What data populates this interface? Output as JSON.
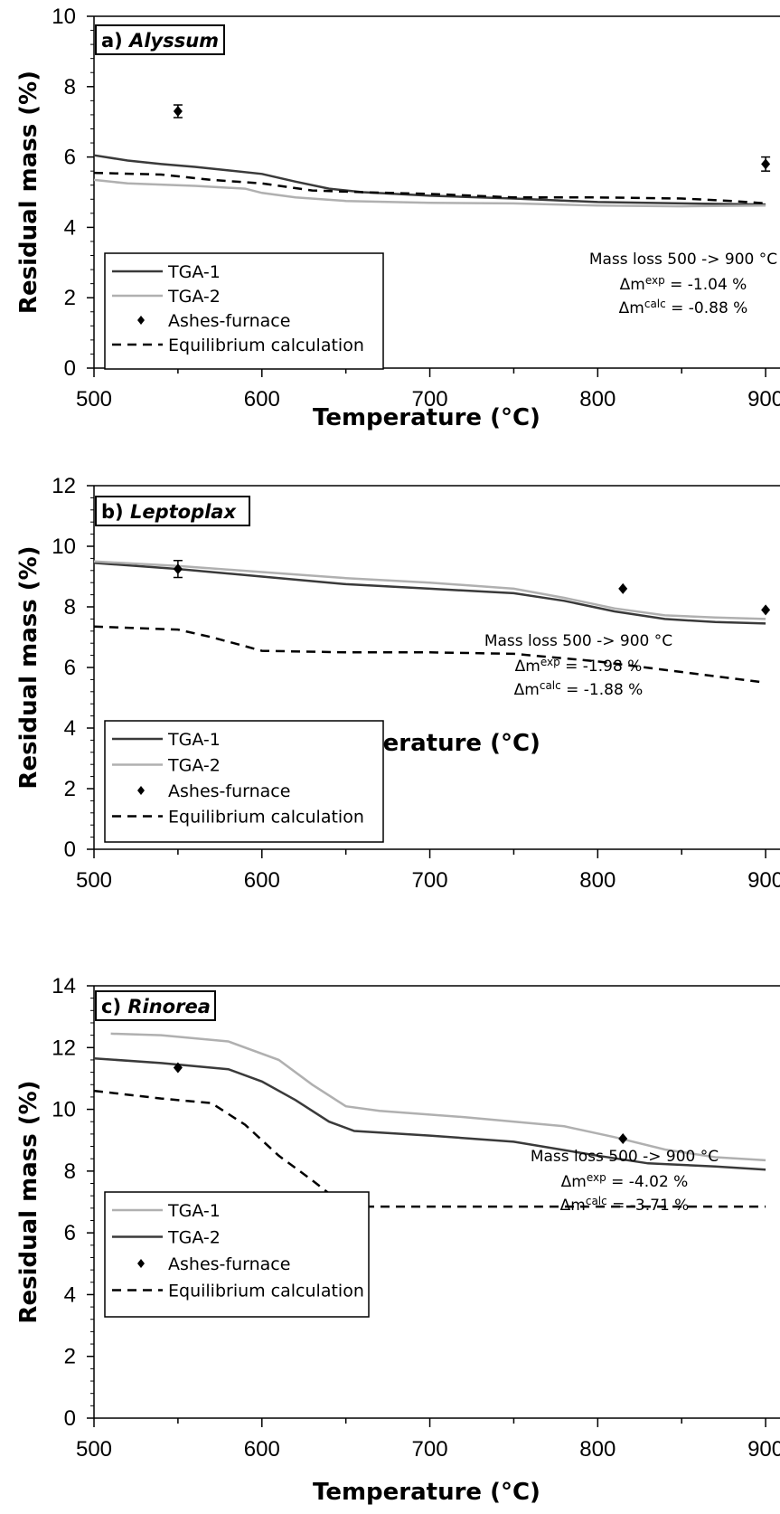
{
  "chart_data": [
    {
      "type": "line",
      "panel_label": "a)",
      "panel_species": "Alyssum",
      "xlabel": "Temperature (°C)",
      "ylabel": "Residual mass (%)",
      "xlim": [
        500,
        950
      ],
      "ylim": [
        0,
        10
      ],
      "x_ticks": [
        500,
        600,
        700,
        800,
        900
      ],
      "y_ticks": [
        0,
        2,
        4,
        6,
        8,
        10
      ],
      "legend_position": "bottom-left",
      "annotation": {
        "line1": "Mass loss 500 -> 900 °C",
        "exp_value": "= -1.04 %",
        "calc_value": "= -0.88 %"
      },
      "series": [
        {
          "name": "TGA-1",
          "style": "solid-dark",
          "color": "#3a3a3a",
          "points": [
            [
              500,
              6.05
            ],
            [
              520,
              5.9
            ],
            [
              540,
              5.8
            ],
            [
              560,
              5.72
            ],
            [
              580,
              5.62
            ],
            [
              600,
              5.52
            ],
            [
              620,
              5.3
            ],
            [
              640,
              5.1
            ],
            [
              660,
              5.0
            ],
            [
              700,
              4.9
            ],
            [
              750,
              4.82
            ],
            [
              800,
              4.72
            ],
            [
              850,
              4.68
            ],
            [
              900,
              4.65
            ],
            [
              950,
              4.63
            ]
          ]
        },
        {
          "name": "TGA-2",
          "style": "solid-light",
          "color": "#b0b0b0",
          "points": [
            [
              500,
              5.35
            ],
            [
              520,
              5.25
            ],
            [
              560,
              5.18
            ],
            [
              590,
              5.1
            ],
            [
              600,
              4.98
            ],
            [
              620,
              4.85
            ],
            [
              650,
              4.75
            ],
            [
              700,
              4.7
            ],
            [
              750,
              4.68
            ],
            [
              800,
              4.62
            ],
            [
              850,
              4.6
            ],
            [
              900,
              4.62
            ],
            [
              950,
              4.68
            ]
          ]
        },
        {
          "name": "Ashes-furnace",
          "style": "markers",
          "color": "#000000",
          "points": [
            [
              550,
              7.3
            ],
            [
              900,
              5.8
            ]
          ],
          "error": [
            0.18,
            0.2
          ]
        },
        {
          "name": "Equilibrium calculation",
          "style": "dashed",
          "color": "#000000",
          "points": [
            [
              500,
              5.55
            ],
            [
              540,
              5.5
            ],
            [
              570,
              5.35
            ],
            [
              600,
              5.25
            ],
            [
              630,
              5.05
            ],
            [
              660,
              5.0
            ],
            [
              700,
              4.95
            ],
            [
              750,
              4.85
            ],
            [
              800,
              4.85
            ],
            [
              850,
              4.82
            ],
            [
              880,
              4.75
            ],
            [
              900,
              4.68
            ],
            [
              930,
              4.6
            ],
            [
              950,
              4.42
            ]
          ]
        }
      ]
    },
    {
      "type": "line",
      "panel_label": "b)",
      "panel_species": "Leptoplax",
      "xlabel": "Temperature (°C)",
      "ylabel": "Residual mass (%)",
      "xlim": [
        500,
        950
      ],
      "ylim": [
        0,
        12
      ],
      "x_ticks": [
        500,
        600,
        700,
        800,
        900
      ],
      "y_ticks": [
        0,
        2,
        4,
        6,
        8,
        10,
        12
      ],
      "legend_position": "bottom-left",
      "annotation": {
        "line1": "Mass loss 500 -> 900 °C",
        "exp_value": "= -1.98 %",
        "calc_value": "= -1.88 %"
      },
      "series": [
        {
          "name": "TGA-1",
          "style": "solid-dark",
          "color": "#3a3a3a",
          "points": [
            [
              500,
              9.45
            ],
            [
              550,
              9.25
            ],
            [
              600,
              9.0
            ],
            [
              650,
              8.75
            ],
            [
              700,
              8.6
            ],
            [
              750,
              8.45
            ],
            [
              780,
              8.2
            ],
            [
              810,
              7.85
            ],
            [
              840,
              7.6
            ],
            [
              870,
              7.5
            ],
            [
              900,
              7.45
            ],
            [
              950,
              7.4
            ]
          ]
        },
        {
          "name": "TGA-2",
          "style": "solid-light",
          "color": "#b0b0b0",
          "points": [
            [
              500,
              9.5
            ],
            [
              550,
              9.35
            ],
            [
              600,
              9.15
            ],
            [
              650,
              8.95
            ],
            [
              700,
              8.8
            ],
            [
              750,
              8.6
            ],
            [
              780,
              8.3
            ],
            [
              810,
              7.95
            ],
            [
              840,
              7.72
            ],
            [
              870,
              7.65
            ],
            [
              900,
              7.6
            ],
            [
              950,
              7.55
            ]
          ]
        },
        {
          "name": "Ashes-furnace",
          "style": "markers",
          "color": "#000000",
          "points": [
            [
              550,
              9.25
            ],
            [
              815,
              8.6
            ],
            [
              900,
              7.9
            ]
          ],
          "error": [
            0.28,
            0,
            0
          ]
        },
        {
          "name": "Equilibrium calculation",
          "style": "dashed",
          "color": "#000000",
          "points": [
            [
              500,
              7.35
            ],
            [
              550,
              7.25
            ],
            [
              570,
              7.0
            ],
            [
              590,
              6.7
            ],
            [
              600,
              6.55
            ],
            [
              650,
              6.5
            ],
            [
              700,
              6.5
            ],
            [
              750,
              6.45
            ],
            [
              800,
              6.2
            ],
            [
              850,
              5.85
            ],
            [
              900,
              5.5
            ],
            [
              950,
              5.15
            ]
          ]
        }
      ]
    },
    {
      "type": "line",
      "panel_label": "c)",
      "panel_species": "Rinorea",
      "xlabel": "Temperature (°C)",
      "ylabel": "Residual mass (%)",
      "xlim": [
        500,
        950
      ],
      "ylim": [
        0,
        14
      ],
      "x_ticks": [
        500,
        600,
        700,
        800,
        900
      ],
      "y_ticks": [
        0,
        2,
        4,
        6,
        8,
        10,
        12,
        14
      ],
      "legend_position": "bottom-left",
      "annotation": {
        "line1": "Mass loss 500 -> 900 °C",
        "exp_value": "= -4.02 %",
        "calc_value": "= -3.71 %"
      },
      "series": [
        {
          "name": "TGA-1",
          "style": "solid-light",
          "color": "#b0b0b0",
          "points": [
            [
              510,
              12.45
            ],
            [
              540,
              12.4
            ],
            [
              580,
              12.2
            ],
            [
              610,
              11.6
            ],
            [
              630,
              10.8
            ],
            [
              650,
              10.1
            ],
            [
              670,
              9.95
            ],
            [
              720,
              9.75
            ],
            [
              780,
              9.45
            ],
            [
              810,
              9.1
            ],
            [
              840,
              8.7
            ],
            [
              870,
              8.45
            ],
            [
              900,
              8.35
            ],
            [
              950,
              8.2
            ]
          ]
        },
        {
          "name": "TGA-2",
          "style": "solid-light-dark",
          "color": "#3a3a3a",
          "points": [
            [
              500,
              11.65
            ],
            [
              540,
              11.5
            ],
            [
              580,
              11.3
            ],
            [
              600,
              10.9
            ],
            [
              620,
              10.3
            ],
            [
              640,
              9.6
            ],
            [
              655,
              9.3
            ],
            [
              700,
              9.15
            ],
            [
              750,
              8.95
            ],
            [
              800,
              8.5
            ],
            [
              830,
              8.25
            ],
            [
              870,
              8.15
            ],
            [
              900,
              8.05
            ],
            [
              950,
              8.0
            ]
          ]
        },
        {
          "name": "Ashes-furnace",
          "style": "markers",
          "color": "#000000",
          "points": [
            [
              550,
              11.35
            ],
            [
              815,
              9.05
            ]
          ],
          "error": [
            0,
            0
          ]
        },
        {
          "name": "Equilibrium calculation",
          "style": "dashed",
          "color": "#000000",
          "points": [
            [
              500,
              10.6
            ],
            [
              540,
              10.35
            ],
            [
              570,
              10.2
            ],
            [
              590,
              9.5
            ],
            [
              610,
              8.5
            ],
            [
              630,
              7.7
            ],
            [
              650,
              6.85
            ],
            [
              700,
              6.85
            ],
            [
              800,
              6.85
            ],
            [
              900,
              6.85
            ],
            [
              950,
              6.85
            ]
          ]
        }
      ]
    }
  ],
  "legend_symbols": {
    "exp": "exp",
    "calc": "calc",
    "delta_m": "Δm"
  }
}
